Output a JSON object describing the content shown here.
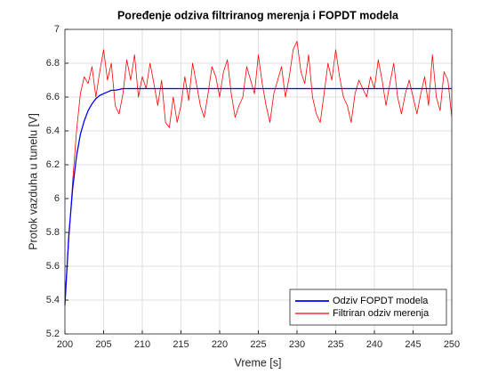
{
  "chart_data": {
    "type": "line",
    "title": "Poređenje odziva filtriranog merenja i FOPDT modela",
    "x_label": "Vreme [s]",
    "y_label": "Protok vazduha u tunelu [V]",
    "x": [
      200,
      200.5,
      201,
      201.5,
      202,
      202.5,
      203,
      203.5,
      204,
      204.5,
      205,
      205.5,
      206,
      206.5,
      207,
      207.5,
      208,
      208.5,
      209,
      209.5,
      210,
      210.5,
      211,
      211.5,
      212,
      212.5,
      213,
      213.5,
      214,
      214.5,
      215,
      215.5,
      216,
      216.5,
      217,
      217.5,
      218,
      218.5,
      219,
      219.5,
      220,
      220.5,
      221,
      221.5,
      222,
      222.5,
      223,
      223.5,
      224,
      224.5,
      225,
      225.5,
      226,
      226.5,
      227,
      227.5,
      228,
      228.5,
      229,
      229.5,
      230,
      230.5,
      231,
      231.5,
      232,
      232.5,
      233,
      233.5,
      234,
      234.5,
      235,
      235.5,
      236,
      236.5,
      237,
      237.5,
      238,
      238.5,
      239,
      239.5,
      240,
      240.5,
      241,
      241.5,
      242,
      242.5,
      243,
      243.5,
      244,
      244.5,
      245,
      245.5,
      246,
      246.5,
      247,
      247.5,
      248,
      248.5,
      249,
      249.5,
      250
    ],
    "series": [
      {
        "name": "Odziv FOPDT modela",
        "color": "#0000ff",
        "width": 1.3,
        "values": [
          5.37,
          5.78,
          6.06,
          6.25,
          6.38,
          6.46,
          6.52,
          6.56,
          6.59,
          6.61,
          6.62,
          6.63,
          6.64,
          6.64,
          6.645,
          6.65,
          6.65,
          6.65,
          6.65,
          6.65,
          6.65,
          6.65,
          6.65,
          6.65,
          6.65,
          6.65,
          6.65,
          6.65,
          6.65,
          6.65,
          6.65,
          6.65,
          6.65,
          6.65,
          6.65,
          6.65,
          6.65,
          6.65,
          6.65,
          6.65,
          6.65,
          6.65,
          6.65,
          6.65,
          6.65,
          6.65,
          6.65,
          6.65,
          6.65,
          6.65,
          6.65,
          6.65,
          6.65,
          6.65,
          6.65,
          6.65,
          6.65,
          6.65,
          6.65,
          6.65,
          6.65,
          6.65,
          6.65,
          6.65,
          6.65,
          6.65,
          6.65,
          6.65,
          6.65,
          6.65,
          6.65,
          6.65,
          6.65,
          6.65,
          6.65,
          6.65,
          6.65,
          6.65,
          6.65,
          6.65,
          6.65,
          6.65,
          6.65,
          6.65,
          6.65,
          6.65,
          6.65,
          6.65,
          6.65,
          6.65,
          6.65,
          6.65,
          6.65,
          6.65,
          6.65,
          6.65,
          6.65,
          6.65,
          6.65,
          6.65,
          6.65
        ]
      },
      {
        "name": "Filtriran odziv merenja",
        "color": "#ff0000",
        "width": 0.8,
        "values": [
          5.42,
          5.75,
          6.1,
          6.4,
          6.62,
          6.72,
          6.68,
          6.78,
          6.6,
          6.75,
          6.88,
          6.7,
          6.8,
          6.55,
          6.5,
          6.62,
          6.82,
          6.7,
          6.85,
          6.6,
          6.72,
          6.65,
          6.8,
          6.68,
          6.55,
          6.7,
          6.45,
          6.42,
          6.6,
          6.45,
          6.55,
          6.72,
          6.58,
          6.8,
          6.68,
          6.55,
          6.48,
          6.62,
          6.78,
          6.72,
          6.6,
          6.75,
          6.82,
          6.62,
          6.48,
          6.55,
          6.6,
          6.78,
          6.7,
          6.62,
          6.85,
          6.68,
          6.55,
          6.45,
          6.62,
          6.7,
          6.78,
          6.6,
          6.72,
          6.88,
          6.93,
          6.75,
          6.68,
          6.85,
          6.6,
          6.5,
          6.45,
          6.62,
          6.8,
          6.7,
          6.88,
          6.72,
          6.6,
          6.55,
          6.45,
          6.62,
          6.7,
          6.65,
          6.6,
          6.72,
          6.65,
          6.82,
          6.7,
          6.55,
          6.68,
          6.8,
          6.6,
          6.5,
          6.62,
          6.7,
          6.6,
          6.5,
          6.62,
          6.72,
          6.55,
          6.85,
          6.6,
          6.52,
          6.75,
          6.7,
          6.48
        ]
      }
    ],
    "xlim": [
      200,
      250
    ],
    "xticks": [
      200,
      205,
      210,
      215,
      220,
      225,
      230,
      235,
      240,
      245,
      250
    ],
    "ylim": [
      5.2,
      7
    ],
    "yticks": [
      5.2,
      5.4,
      5.6,
      5.8,
      6,
      6.2,
      6.4,
      6.6,
      6.8,
      7
    ],
    "grid": true,
    "legend": "lower right"
  }
}
